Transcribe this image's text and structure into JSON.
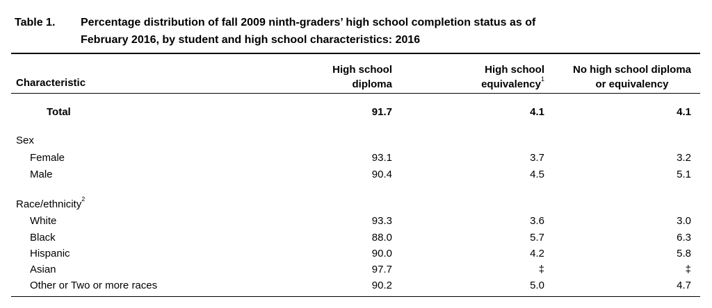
{
  "table_number": "Table 1.",
  "title_line1": "Percentage distribution of fall 2009 ninth-graders’ high school completion status as of",
  "title_line2": "February 2016, by student and high school characteristics: 2016",
  "headers": {
    "characteristic": "Characteristic",
    "col1_line1": "High school",
    "col1_line2": "diploma",
    "col2_line1": "High school",
    "col2_line2": "equivalency",
    "col2_sup": "1",
    "col3_line1": "No high school diploma",
    "col3_line2": "or equivalency"
  },
  "total": {
    "label": "Total",
    "diploma": "91.7",
    "equivalency": "4.1",
    "none": "4.1"
  },
  "sex": {
    "heading": "Sex",
    "rows": [
      {
        "label": "Female",
        "diploma": "93.1",
        "equivalency": "3.7",
        "none": "3.2"
      },
      {
        "label": "Male",
        "diploma": "90.4",
        "equivalency": "4.5",
        "none": "5.1"
      }
    ]
  },
  "race": {
    "heading": "Race/ethnicity",
    "heading_sup": "2",
    "rows": [
      {
        "label": "White",
        "diploma": "93.3",
        "equivalency": "3.6",
        "none": "3.0"
      },
      {
        "label": "Black",
        "diploma": "88.0",
        "equivalency": "5.7",
        "none": "6.3"
      },
      {
        "label": "Hispanic",
        "diploma": "90.0",
        "equivalency": "4.2",
        "none": "5.8"
      },
      {
        "label": "Asian",
        "diploma": "97.7",
        "equivalency": "‡",
        "none": "‡"
      },
      {
        "label": "Other or Two or more races",
        "diploma": "90.2",
        "equivalency": "5.0",
        "none": "4.7"
      }
    ]
  }
}
